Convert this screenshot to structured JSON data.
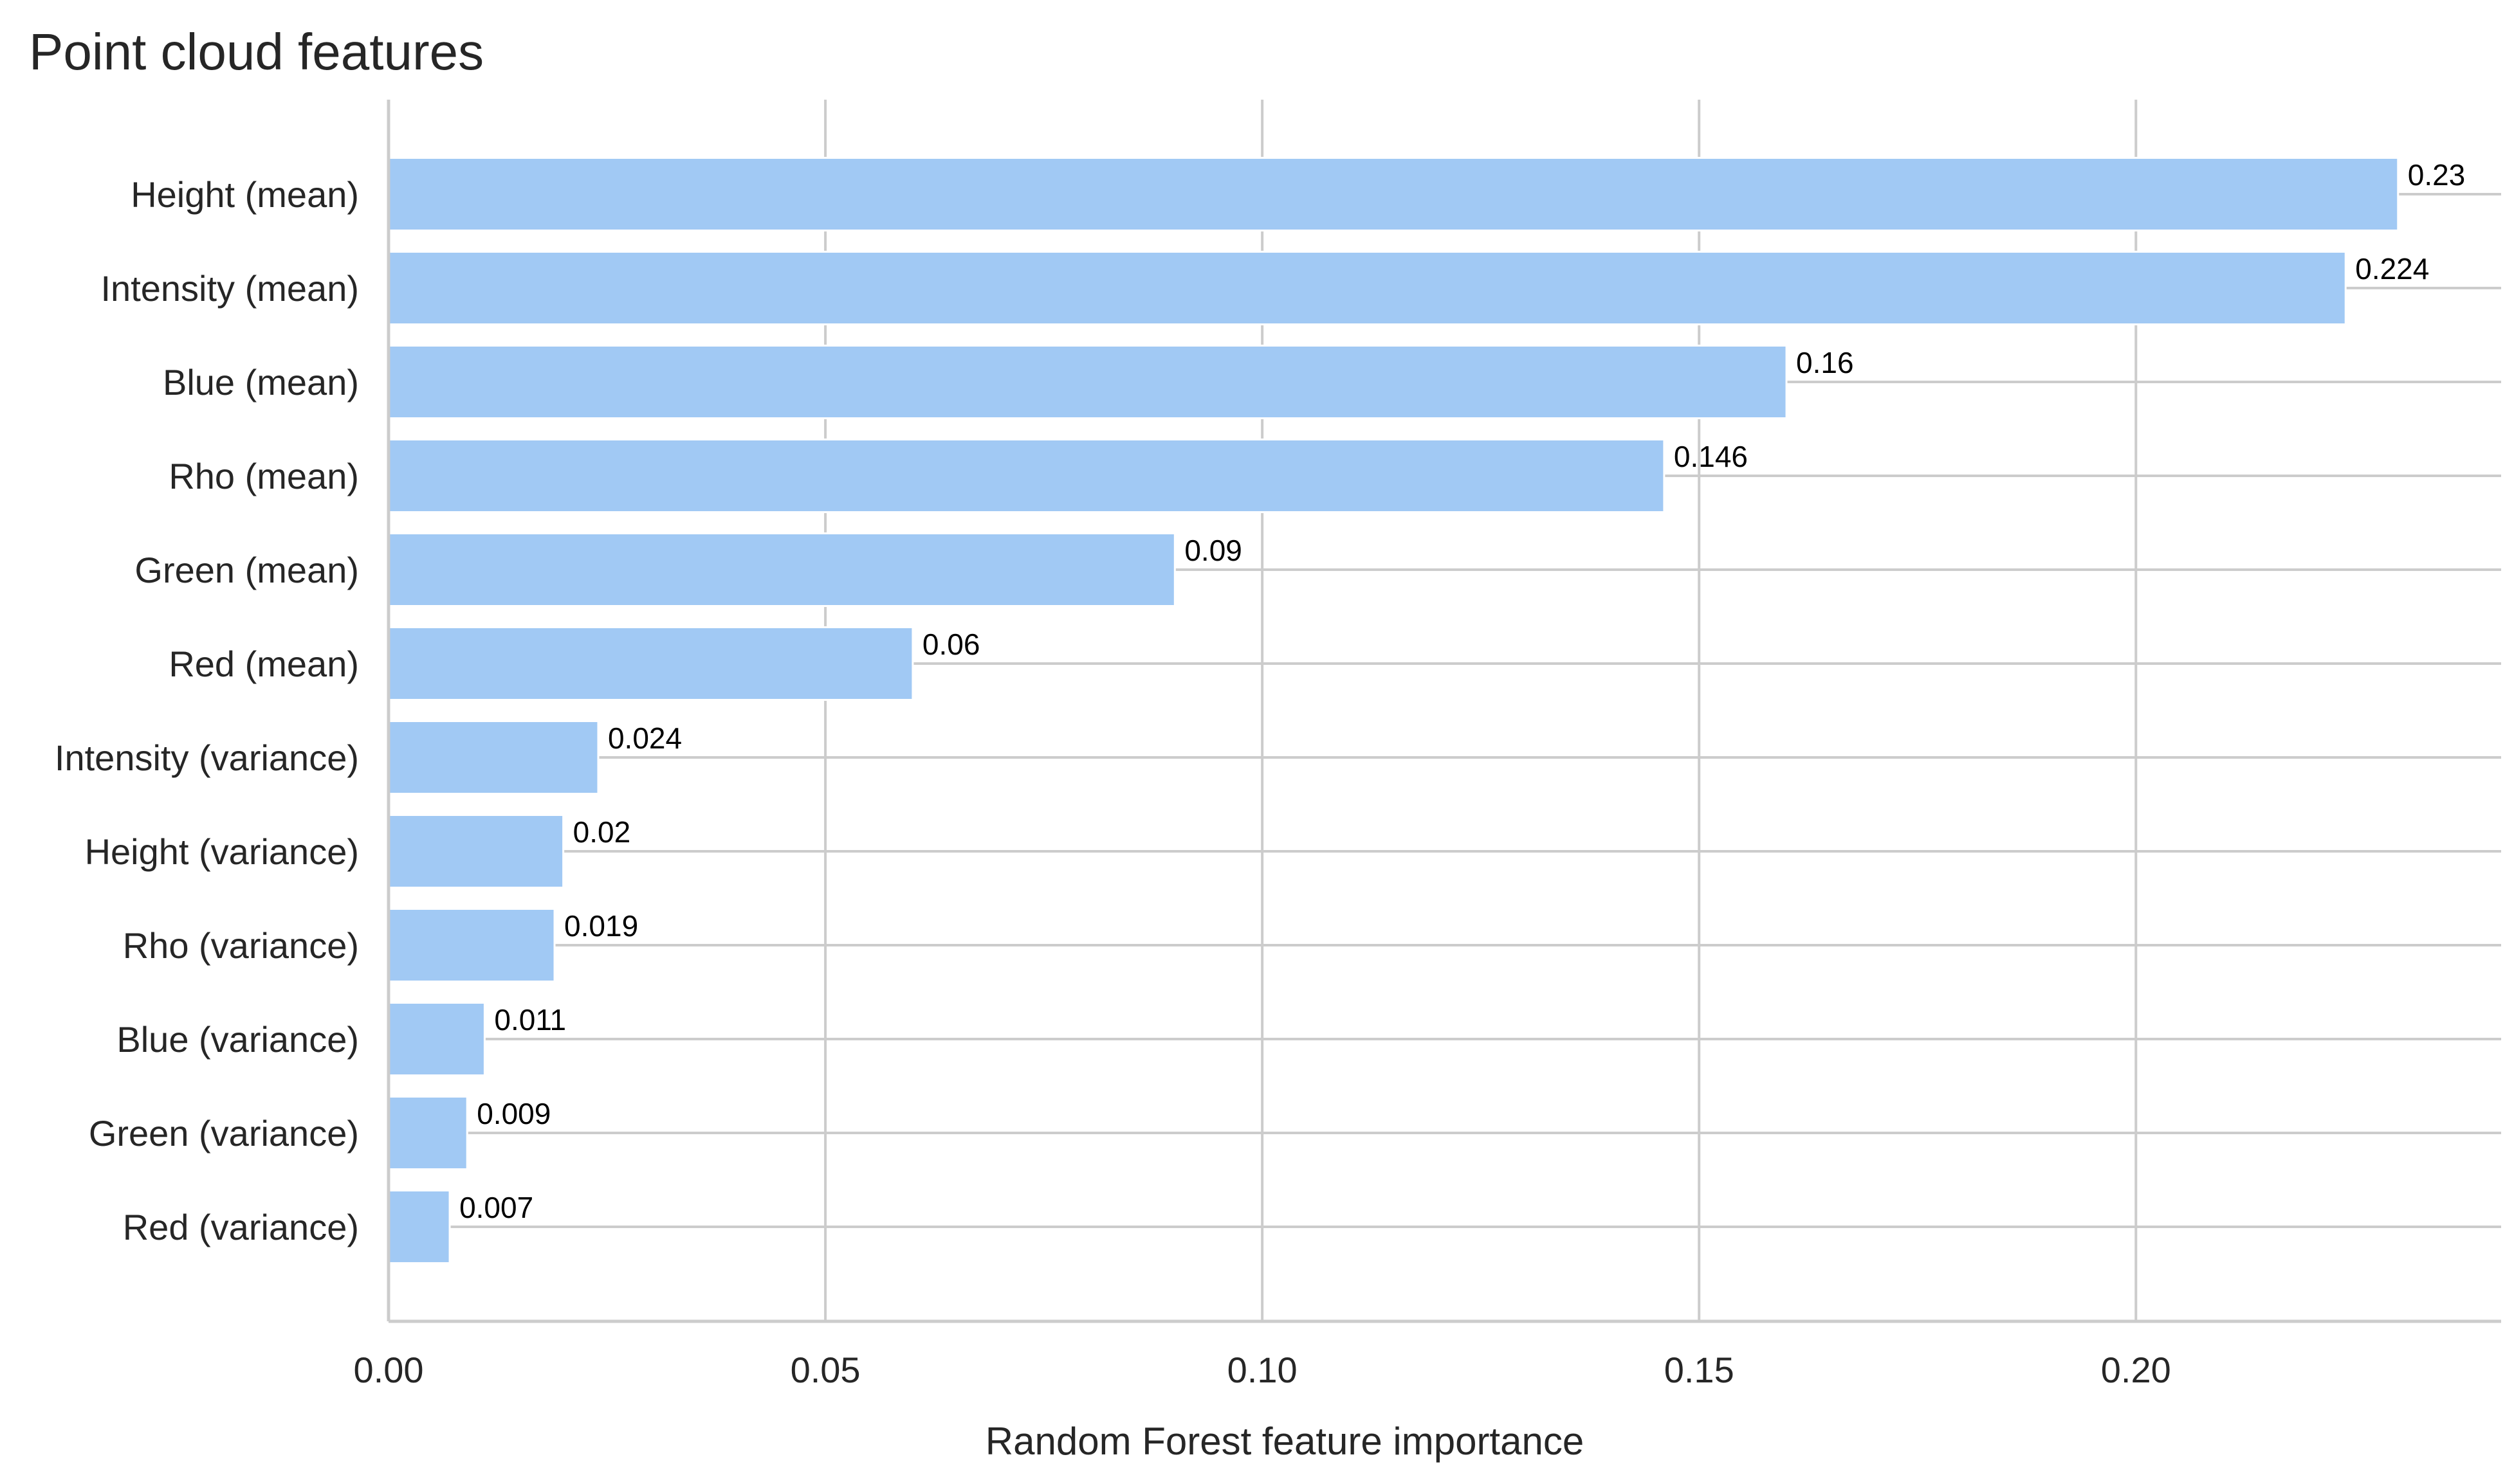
{
  "chart_data": {
    "type": "bar",
    "orientation": "horizontal",
    "title": "Point cloud features",
    "xlabel": "Random Forest feature importance",
    "ylabel": "",
    "categories": [
      "Height (mean)",
      "Intensity (mean)",
      "Blue (mean)",
      "Rho (mean)",
      "Green (mean)",
      "Red (mean)",
      "Intensity (variance)",
      "Height (variance)",
      "Rho (variance)",
      "Blue (variance)",
      "Green (variance)",
      "Red (variance)"
    ],
    "values": [
      0.23,
      0.224,
      0.16,
      0.146,
      0.09,
      0.06,
      0.024,
      0.02,
      0.019,
      0.011,
      0.009,
      0.007
    ],
    "data_labels": [
      "0.23",
      "0.224",
      "0.16",
      "0.146",
      "0.09",
      "0.06",
      "0.024",
      "0.02",
      "0.019",
      "0.011",
      "0.009",
      "0.007"
    ],
    "x_ticks": [
      0.0,
      0.05,
      0.1,
      0.15,
      0.2
    ],
    "x_tick_labels": [
      "0.00",
      "0.05",
      "0.10",
      "0.15",
      "0.20"
    ],
    "xlim": [
      0,
      0.2418
    ],
    "grid": true,
    "bar_color": "#a1c9f4",
    "grid_color": "#cccccc",
    "text_color": "#262626"
  }
}
